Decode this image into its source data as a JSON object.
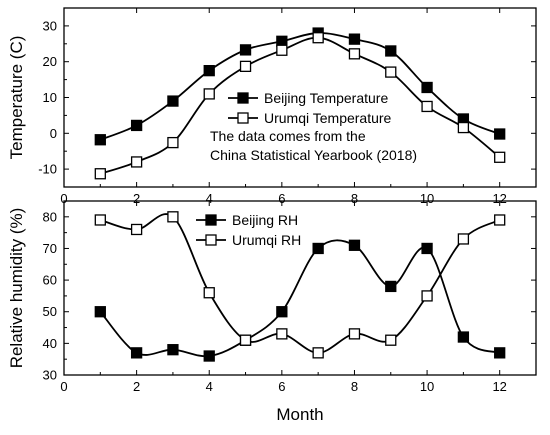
{
  "chart_data": [
    {
      "type": "line",
      "ylabel": "Temperature (C)",
      "xlim": [
        0,
        13
      ],
      "ylim": [
        -15,
        35
      ],
      "xticks": [
        0,
        2,
        4,
        6,
        8,
        10,
        12
      ],
      "yticks": [
        -10,
        0,
        10,
        20,
        30
      ],
      "x": [
        1,
        2,
        3,
        4,
        5,
        6,
        7,
        8,
        9,
        10,
        11,
        12
      ],
      "series": [
        {
          "name": "Beijing Temperature",
          "marker": "filled-square",
          "values": [
            -1.8,
            2.2,
            9.0,
            17.5,
            23.3,
            25.7,
            28.0,
            26.3,
            23.0,
            12.8,
            4.0,
            -0.2
          ]
        },
        {
          "name": "Urumqi Temperature",
          "marker": "open-square",
          "values": [
            -11.3,
            -8.0,
            -2.6,
            11.0,
            18.7,
            23.2,
            26.7,
            22.2,
            17.1,
            7.5,
            1.6,
            -6.7
          ]
        }
      ],
      "legend_position": "center-right",
      "annotation": [
        "The data comes from the",
        "China Statistical Yearbook (2018)"
      ]
    },
    {
      "type": "line",
      "xlabel": "Month",
      "ylabel": "Relative humidity (%)",
      "xlim": [
        0,
        13
      ],
      "ylim": [
        30,
        85
      ],
      "xticks": [
        0,
        2,
        4,
        6,
        8,
        10,
        12
      ],
      "yticks": [
        30,
        40,
        50,
        60,
        70,
        80
      ],
      "x": [
        1,
        2,
        3,
        4,
        5,
        6,
        7,
        8,
        9,
        10,
        11,
        12
      ],
      "series": [
        {
          "name": "Beijing RH",
          "marker": "filled-square",
          "values": [
            50,
            37,
            38,
            36,
            41,
            50,
            70,
            71,
            58,
            70,
            42,
            37
          ]
        },
        {
          "name": "Urumqi RH",
          "marker": "open-square",
          "values": [
            79,
            76,
            80,
            56,
            41,
            43,
            37,
            43,
            41,
            55,
            73,
            79
          ]
        }
      ],
      "legend_position": "top-center"
    }
  ]
}
